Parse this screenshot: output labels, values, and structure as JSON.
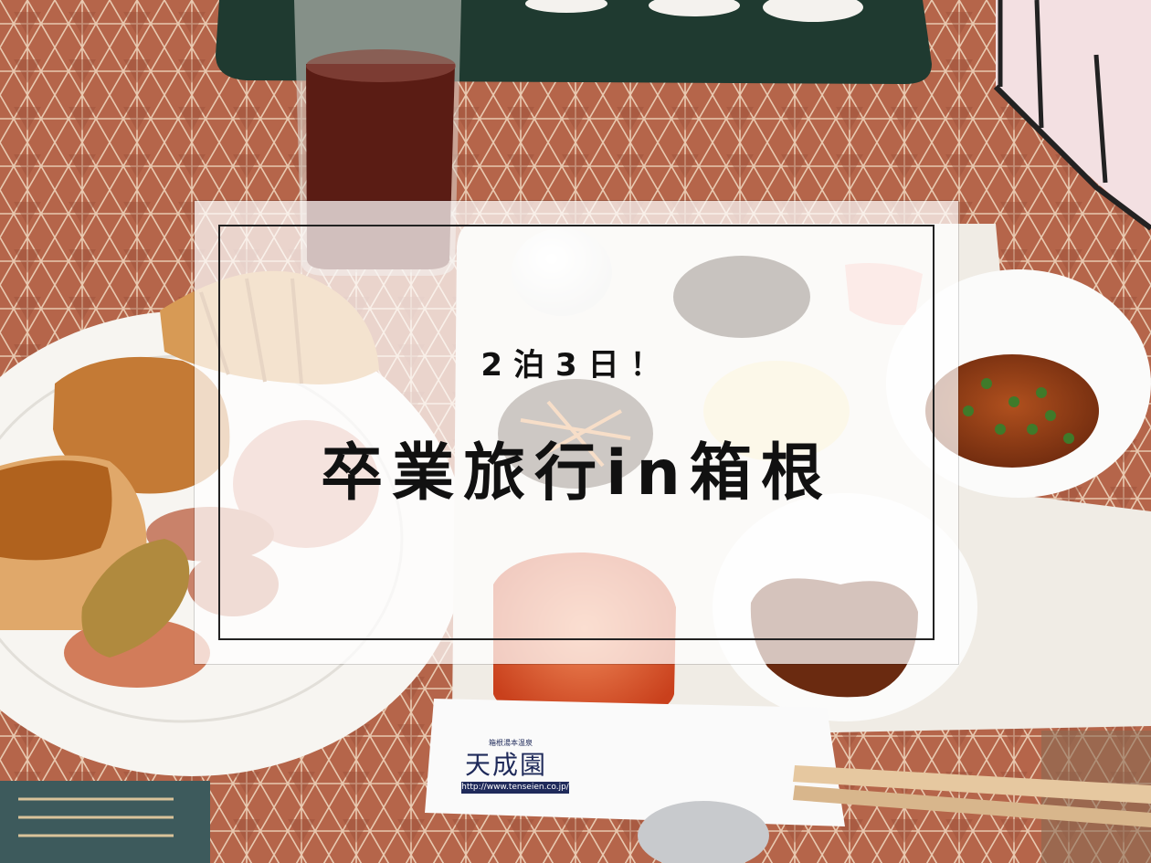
{
  "overlay": {
    "subtitle": "2泊3日！",
    "title": "卒業旅行in箱根"
  },
  "napkin": {
    "brand": "天成園",
    "tagline": "箱根湯本温泉",
    "url": "http://www.tenseien.co.jp/"
  },
  "colors": {
    "tablecloth": "#b5654a",
    "tablecloth_pattern": "#e8c9b0",
    "plate": "#f7f5f1",
    "tray": "#efeae2",
    "overlay_frame": "#222222",
    "text": "#111111",
    "logo_navy": "#1f2a5a"
  }
}
